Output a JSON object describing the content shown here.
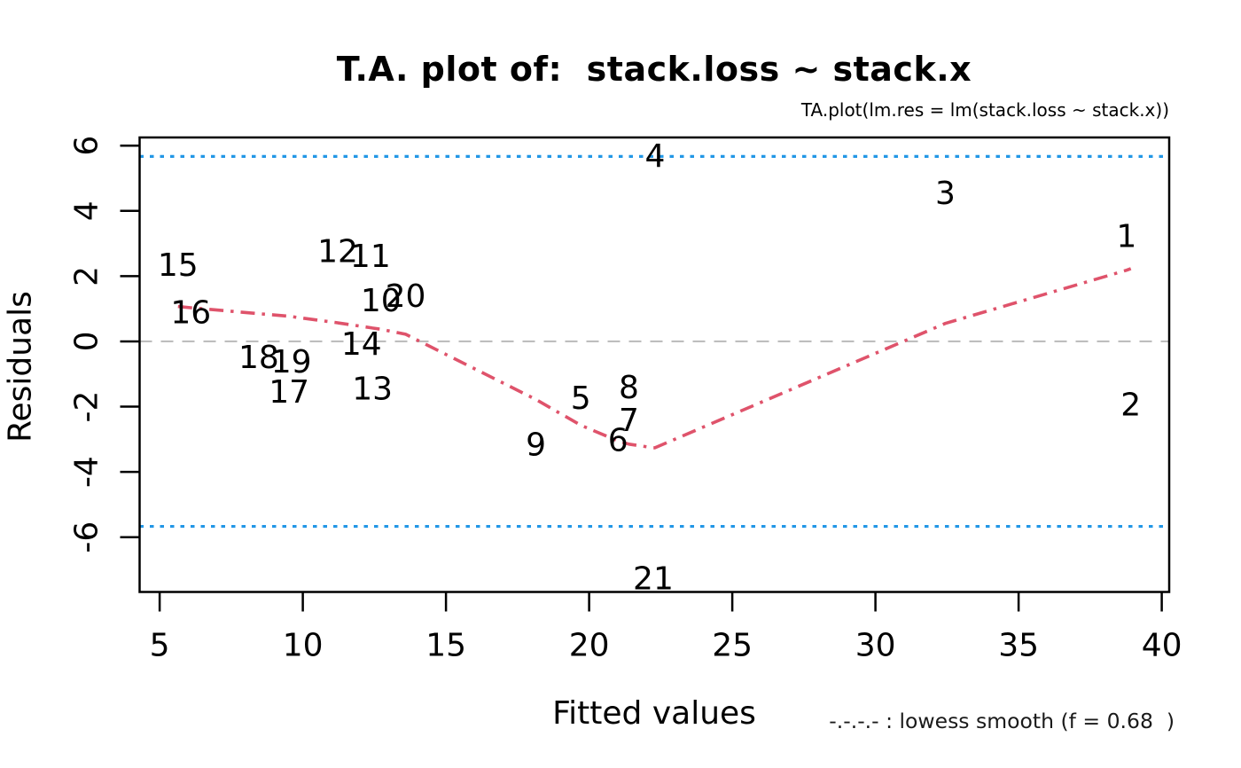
{
  "chart_data": {
    "type": "scatter",
    "title": "T.A. plot of:  stack.loss ~ stack.x",
    "subtitle": "TA.plot(lm.res = lm(stack.loss ~ stack.x))",
    "xlabel": "Fitted values",
    "ylabel": "Residuals",
    "legend_text": "-.-.-.- : lowess smooth (f = 0.68  )",
    "x_ticks": [
      5,
      10,
      15,
      20,
      25,
      30,
      35,
      40
    ],
    "y_ticks": [
      -6,
      -4,
      -2,
      0,
      2,
      4,
      6
    ],
    "xlim": [
      4.3,
      40.26
    ],
    "ylim": [
      -7.68,
      6.25
    ],
    "zero_line_y": 0,
    "sigma_band_lines": [
      5.67,
      -5.67
    ],
    "lowess_f": 0.68,
    "points": [
      {
        "label": "1",
        "fitted": 38.77,
        "residual": 3.24
      },
      {
        "label": "2",
        "fitted": 38.92,
        "residual": -1.92
      },
      {
        "label": "3",
        "fitted": 32.44,
        "residual": 4.56
      },
      {
        "label": "4",
        "fitted": 22.3,
        "residual": 5.7
      },
      {
        "label": "5",
        "fitted": 19.71,
        "residual": -1.71
      },
      {
        "label": "6",
        "fitted": 21.01,
        "residual": -3.01
      },
      {
        "label": "7",
        "fitted": 21.39,
        "residual": -2.39
      },
      {
        "label": "8",
        "fitted": 21.39,
        "residual": -1.39
      },
      {
        "label": "9",
        "fitted": 18.14,
        "residual": -3.14
      },
      {
        "label": "10",
        "fitted": 12.73,
        "residual": 1.27
      },
      {
        "label": "11",
        "fitted": 12.36,
        "residual": 2.64
      },
      {
        "label": "12",
        "fitted": 11.22,
        "residual": 2.78
      },
      {
        "label": "13",
        "fitted": 12.43,
        "residual": -1.43
      },
      {
        "label": "14",
        "fitted": 12.05,
        "residual": -0.05
      },
      {
        "label": "15",
        "fitted": 5.64,
        "residual": 2.36
      },
      {
        "label": "16",
        "fitted": 6.09,
        "residual": 0.91
      },
      {
        "label": "17",
        "fitted": 9.52,
        "residual": -1.52
      },
      {
        "label": "18",
        "fitted": 8.46,
        "residual": -0.46
      },
      {
        "label": "19",
        "fitted": 9.6,
        "residual": -0.6
      },
      {
        "label": "20",
        "fitted": 13.59,
        "residual": 1.41
      },
      {
        "label": "21",
        "fitted": 22.24,
        "residual": -7.24
      }
    ],
    "lowess_curve": [
      [
        5.64,
        1.07
      ],
      [
        6.09,
        1.03
      ],
      [
        8.46,
        0.85
      ],
      [
        9.52,
        0.77
      ],
      [
        9.6,
        0.76
      ],
      [
        11.22,
        0.57
      ],
      [
        12.05,
        0.46
      ],
      [
        12.36,
        0.42
      ],
      [
        12.43,
        0.41
      ],
      [
        12.73,
        0.37
      ],
      [
        13.59,
        0.22
      ],
      [
        18.14,
        -1.78
      ],
      [
        19.71,
        -2.57
      ],
      [
        21.01,
        -3.05
      ],
      [
        21.39,
        -3.15
      ],
      [
        22.24,
        -3.26
      ],
      [
        22.3,
        -3.26
      ],
      [
        32.44,
        0.55
      ],
      [
        38.77,
        2.18
      ],
      [
        38.92,
        2.23
      ]
    ],
    "colors": {
      "lowess_curve": "#DF536B",
      "sigma_lines": "#2297E6",
      "zero_line": "#BEBEBE",
      "frame": "#000000",
      "text": "#000000",
      "background": "#FFFFFF"
    }
  }
}
